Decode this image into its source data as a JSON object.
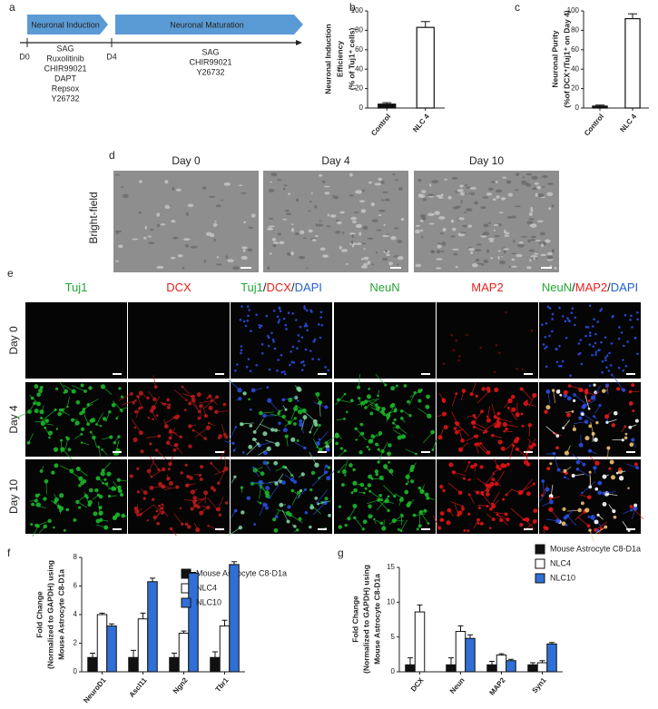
{
  "figure": {
    "panel_a": {
      "label": "a",
      "phases": [
        "Neuronal Induction",
        "Neuronal Maturation"
      ],
      "timepoints": [
        "D0",
        "D4"
      ],
      "induction_factors": [
        "SAG",
        "Ruxolitinib",
        "CHIR99021",
        "DAPT",
        "Repsox",
        "Y26732"
      ],
      "maturation_factors": [
        "SAG",
        "CHIR99021",
        "Y26732"
      ]
    },
    "panel_d": {
      "label": "d",
      "row_label": "Bright-field",
      "columns": [
        "Day 0",
        "Day 4",
        "Day 10"
      ]
    },
    "panel_e": {
      "label": "e",
      "columns": [
        [
          {
            "text": "Tuj1",
            "color": "#22a633"
          }
        ],
        [
          {
            "text": "DCX",
            "color": "#e8201c"
          }
        ],
        [
          {
            "text": "Tuj1",
            "color": "#22a633"
          },
          {
            "text": "/",
            "color": "#222222"
          },
          {
            "text": "DCX",
            "color": "#e8201c"
          },
          {
            "text": "/",
            "color": "#222222"
          },
          {
            "text": "DAPI",
            "color": "#1f5fd0"
          }
        ],
        [
          {
            "text": "NeuN",
            "color": "#22a633"
          }
        ],
        [
          {
            "text": "MAP2",
            "color": "#e8201c"
          }
        ],
        [
          {
            "text": "NeuN",
            "color": "#22a633"
          },
          {
            "text": "/",
            "color": "#222222"
          },
          {
            "text": "MAP2",
            "color": "#e8201c"
          },
          {
            "text": "/",
            "color": "#222222"
          },
          {
            "text": "DAPI",
            "color": "#1f5fd0"
          }
        ]
      ],
      "rows": [
        "Day 0",
        "Day 4",
        "Day 10"
      ]
    }
  },
  "chart_data": [
    {
      "type": "bar",
      "panel": "b",
      "ylabel": [
        "Neuronal Induction",
        "Efficiency",
        "(% of Tuj1⁺ cells)"
      ],
      "categories": [
        "Control",
        "NLC 4"
      ],
      "values": [
        4,
        83
      ],
      "errors": [
        1.5,
        6
      ],
      "colors": [
        "#111111",
        "#ffffff"
      ],
      "ylim": [
        0,
        100
      ],
      "yticks": [
        0,
        20,
        40,
        60,
        80,
        100
      ]
    },
    {
      "type": "bar",
      "panel": "c",
      "ylabel": [
        "Neuronal Purity",
        "(%of DCX⁺/Tuj1⁺ on Day 4)"
      ],
      "categories": [
        "Control",
        "NLC 4"
      ],
      "values": [
        2,
        92
      ],
      "errors": [
        1,
        5
      ],
      "colors": [
        "#111111",
        "#ffffff"
      ],
      "ylim": [
        0,
        100
      ],
      "yticks": [
        0,
        20,
        40,
        60,
        80,
        100
      ]
    },
    {
      "type": "grouped_bar",
      "panel": "f",
      "ylabel": [
        "Fold Change",
        "(Normalized to GAPDH) using",
        "Mouse Astrocyte C8-D1a"
      ],
      "categories": [
        "NeuroD1",
        "Ascl11",
        "Ngn2",
        "Tbr1"
      ],
      "series": [
        {
          "name": "Mouse Astrocyte C8-D1a",
          "color": "#111111",
          "values": [
            1,
            1,
            1,
            1
          ],
          "errors": [
            0.3,
            0.5,
            0.3,
            0.4
          ]
        },
        {
          "name": "NLC4",
          "color": "#ffffff",
          "values": [
            4.0,
            3.7,
            2.7,
            3.2
          ],
          "errors": [
            0.1,
            0.4,
            0.15,
            0.4
          ]
        },
        {
          "name": "NLC10",
          "color": "#2f6fd6",
          "values": [
            3.2,
            6.3,
            6.9,
            7.5
          ],
          "errors": [
            0.15,
            0.25,
            0.05,
            0.2
          ]
        }
      ],
      "ylim": [
        0,
        8
      ],
      "yticks": [
        0,
        2,
        4,
        6,
        8
      ],
      "legend": "top-right"
    },
    {
      "type": "grouped_bar",
      "panel": "g",
      "ylabel": [
        "Fold Change",
        "(Normalized to GAPDH) using",
        "Mouse Astrocyte C8-D1a"
      ],
      "categories": [
        "DCX",
        "Neun",
        "MAP2",
        "Syn1"
      ],
      "series": [
        {
          "name": "Mouse Astrocyte C8-D1a",
          "color": "#111111",
          "values": [
            1,
            1,
            1,
            1
          ],
          "errors": [
            1,
            1,
            0.5,
            0.3
          ]
        },
        {
          "name": "NLC4",
          "color": "#ffffff",
          "values": [
            8.6,
            5.8,
            2.4,
            1.3
          ],
          "errors": [
            1,
            0.8,
            0.2,
            0.3
          ]
        },
        {
          "name": "NLC10",
          "color": "#2f6fd6",
          "values": [
            null,
            4.8,
            1.6,
            4.0
          ],
          "errors": [
            null,
            0.5,
            0.2,
            0.2
          ]
        }
      ],
      "ylim": [
        0,
        15
      ],
      "yticks": [
        0,
        5,
        10,
        15
      ],
      "legend": "top-right"
    }
  ]
}
